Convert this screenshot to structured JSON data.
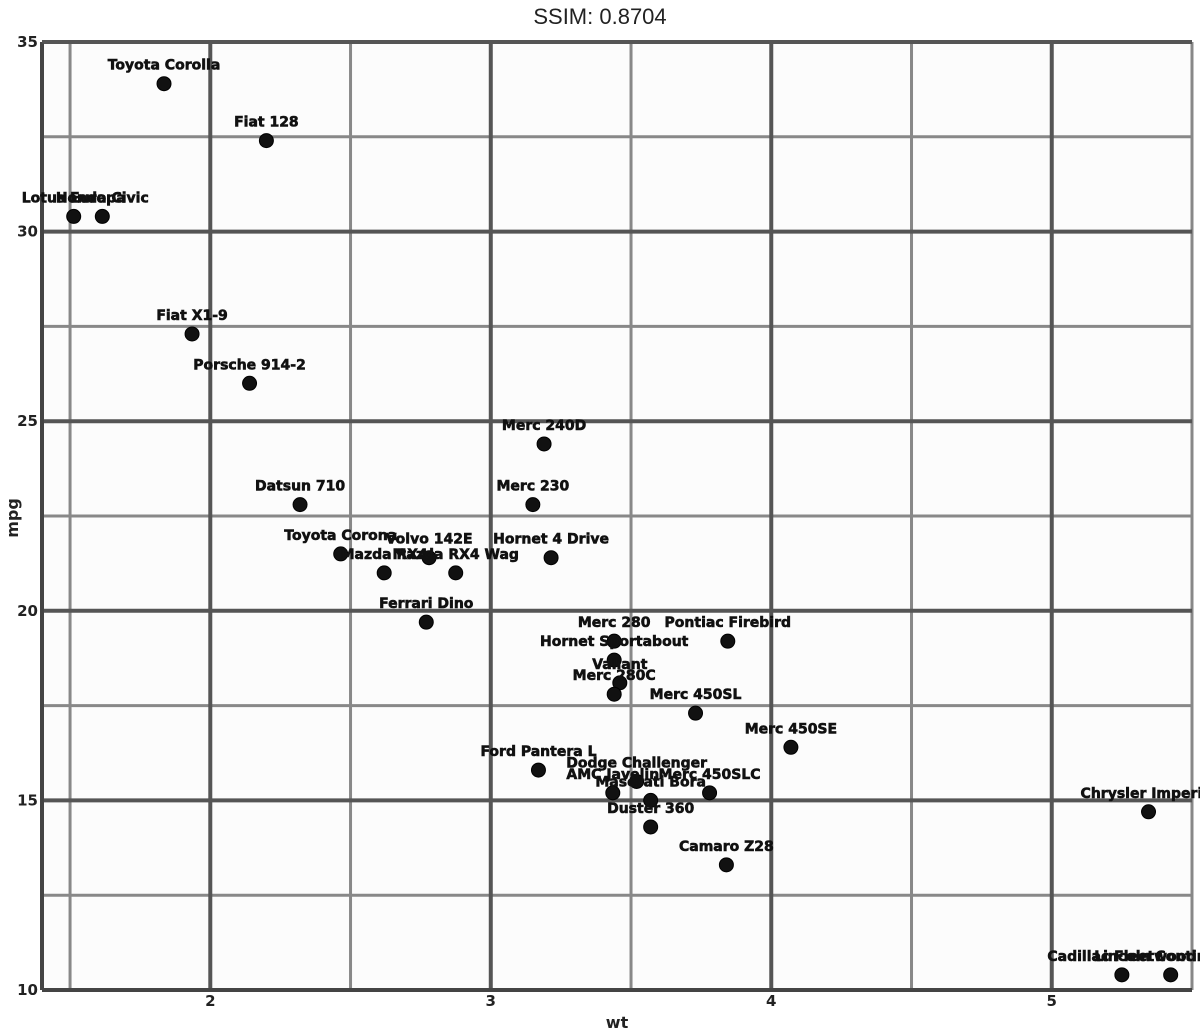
{
  "chart_data": {
    "type": "scatter",
    "title": "SSIM: 0.8704",
    "xlabel": "wt",
    "ylabel": "mpg",
    "xlim": [
      1.4,
      5.5
    ],
    "ylim": [
      10,
      35
    ],
    "x_major_ticks": [
      2,
      3,
      4,
      5
    ],
    "x_minor_ticks": [
      1.5,
      2.5,
      3.5,
      4.5,
      5.5
    ],
    "y_major_ticks": [
      10,
      15,
      20,
      25,
      30,
      35
    ],
    "y_minor_ticks": [
      12.5,
      17.5,
      22.5,
      27.5,
      32.5
    ],
    "x_tick_labels": [
      "2",
      "3",
      "4",
      "5"
    ],
    "y_tick_labels": [
      "10",
      "15",
      "20",
      "25",
      "30",
      "35"
    ],
    "grid": true,
    "colors": {
      "points": "#111111",
      "grid_major": "#555555",
      "grid_minor": "#888888",
      "background": "#fcfcfc"
    },
    "points": [
      {
        "name": "Mazda RX4",
        "x": 2.62,
        "y": 21.0
      },
      {
        "name": "Mazda RX4 Wag",
        "x": 2.875,
        "y": 21.0
      },
      {
        "name": "Datsun 710",
        "x": 2.32,
        "y": 22.8
      },
      {
        "name": "Hornet 4 Drive",
        "x": 3.215,
        "y": 21.4
      },
      {
        "name": "Hornet Sportabout",
        "x": 3.44,
        "y": 18.7
      },
      {
        "name": "Valiant",
        "x": 3.46,
        "y": 18.1
      },
      {
        "name": "Duster 360",
        "x": 3.57,
        "y": 14.3
      },
      {
        "name": "Merc 240D",
        "x": 3.19,
        "y": 24.4
      },
      {
        "name": "Merc 230",
        "x": 3.15,
        "y": 22.8
      },
      {
        "name": "Merc 280",
        "x": 3.44,
        "y": 19.2
      },
      {
        "name": "Merc 280C",
        "x": 3.44,
        "y": 17.8
      },
      {
        "name": "Merc 450SE",
        "x": 4.07,
        "y": 16.4
      },
      {
        "name": "Merc 450SL",
        "x": 3.73,
        "y": 17.3
      },
      {
        "name": "Merc 450SLC",
        "x": 3.78,
        "y": 15.2
      },
      {
        "name": "Cadillac Fleetwood",
        "x": 5.25,
        "y": 10.4
      },
      {
        "name": "Lincoln Continental",
        "x": 5.424,
        "y": 10.4
      },
      {
        "name": "Chrysler Imperial",
        "x": 5.345,
        "y": 14.7
      },
      {
        "name": "Fiat 128",
        "x": 2.2,
        "y": 32.4
      },
      {
        "name": "Honda Civic",
        "x": 1.615,
        "y": 30.4
      },
      {
        "name": "Toyota Corolla",
        "x": 1.835,
        "y": 33.9
      },
      {
        "name": "Toyota Corona",
        "x": 2.465,
        "y": 21.5
      },
      {
        "name": "Dodge Challenger",
        "x": 3.52,
        "y": 15.5
      },
      {
        "name": "AMC Javelin",
        "x": 3.435,
        "y": 15.2
      },
      {
        "name": "Camaro Z28",
        "x": 3.84,
        "y": 13.3
      },
      {
        "name": "Pontiac Firebird",
        "x": 3.845,
        "y": 19.2
      },
      {
        "name": "Fiat X1-9",
        "x": 1.935,
        "y": 27.3
      },
      {
        "name": "Porsche 914-2",
        "x": 2.14,
        "y": 26.0
      },
      {
        "name": "Lotus Europa",
        "x": 1.513,
        "y": 30.4
      },
      {
        "name": "Ford Pantera L",
        "x": 3.17,
        "y": 15.8
      },
      {
        "name": "Ferrari Dino",
        "x": 2.77,
        "y": 19.7
      },
      {
        "name": "Maserati Bora",
        "x": 3.57,
        "y": 15.0
      },
      {
        "name": "Volvo 142E",
        "x": 2.78,
        "y": 21.4
      }
    ]
  }
}
